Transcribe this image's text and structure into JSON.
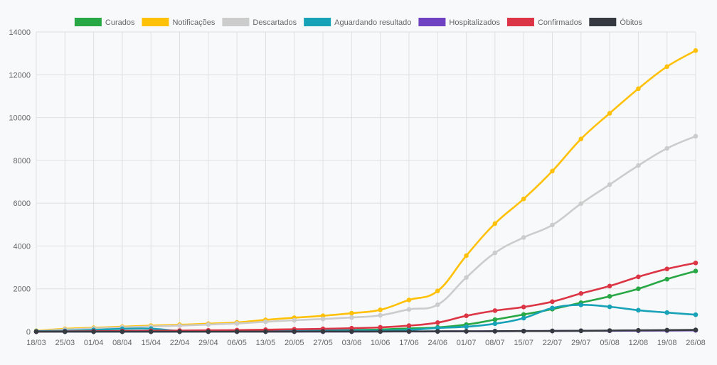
{
  "chart_data": {
    "type": "line",
    "title": "",
    "xlabel": "",
    "ylabel": "",
    "ylim": [
      0,
      14000
    ],
    "yticks": [
      0,
      2000,
      4000,
      6000,
      8000,
      10000,
      12000,
      14000
    ],
    "grid": true,
    "legend_position": "top",
    "categories": [
      "18/03",
      "25/03",
      "01/04",
      "08/04",
      "15/04",
      "22/04",
      "29/04",
      "06/05",
      "13/05",
      "20/05",
      "27/05",
      "03/06",
      "10/06",
      "17/06",
      "24/06",
      "01/07",
      "08/07",
      "15/07",
      "22/07",
      "29/07",
      "05/08",
      "12/08",
      "19/08",
      "26/08"
    ],
    "series": [
      {
        "name": "Curados",
        "color": "#28a745",
        "values": [
          0,
          0,
          0,
          0,
          0,
          5,
          10,
          20,
          30,
          40,
          60,
          80,
          100,
          150,
          200,
          330,
          560,
          800,
          1050,
          1350,
          1650,
          2000,
          2450,
          2830
        ]
      },
      {
        "name": "Notificações",
        "color": "#ffc107",
        "values": [
          40,
          130,
          180,
          230,
          280,
          320,
          370,
          430,
          550,
          650,
          740,
          860,
          1020,
          1480,
          1900,
          3550,
          5050,
          6200,
          7500,
          9000,
          10200,
          11350,
          12380,
          13130
        ]
      },
      {
        "name": "Descartados",
        "color": "#cccccc",
        "values": [
          20,
          100,
          150,
          200,
          240,
          280,
          330,
          380,
          460,
          530,
          590,
          660,
          760,
          1040,
          1260,
          2530,
          3680,
          4400,
          4980,
          5980,
          6870,
          7760,
          8560,
          9130
        ]
      },
      {
        "name": "Aguardando resultado",
        "color": "#17a2b8",
        "values": [
          20,
          40,
          80,
          130,
          140,
          30,
          30,
          40,
          50,
          50,
          50,
          60,
          50,
          80,
          170,
          230,
          370,
          630,
          1100,
          1250,
          1160,
          1000,
          890,
          790
        ]
      },
      {
        "name": "Hospitalizados",
        "color": "#6f42c1",
        "values": [
          0,
          0,
          0,
          0,
          0,
          0,
          0,
          0,
          0,
          0,
          0,
          0,
          5,
          5,
          10,
          15,
          20,
          25,
          30,
          40,
          40,
          45,
          50,
          60
        ]
      },
      {
        "name": "Confirmados",
        "color": "#dc3545",
        "values": [
          0,
          10,
          20,
          30,
          40,
          50,
          60,
          70,
          90,
          110,
          130,
          160,
          200,
          280,
          420,
          740,
          980,
          1150,
          1400,
          1780,
          2130,
          2560,
          2930,
          3210
        ]
      },
      {
        "name": "Óbitos",
        "color": "#343a40",
        "values": [
          0,
          0,
          0,
          0,
          0,
          0,
          1,
          2,
          3,
          4,
          5,
          6,
          8,
          10,
          12,
          15,
          20,
          25,
          30,
          40,
          50,
          60,
          70,
          80
        ]
      }
    ]
  }
}
